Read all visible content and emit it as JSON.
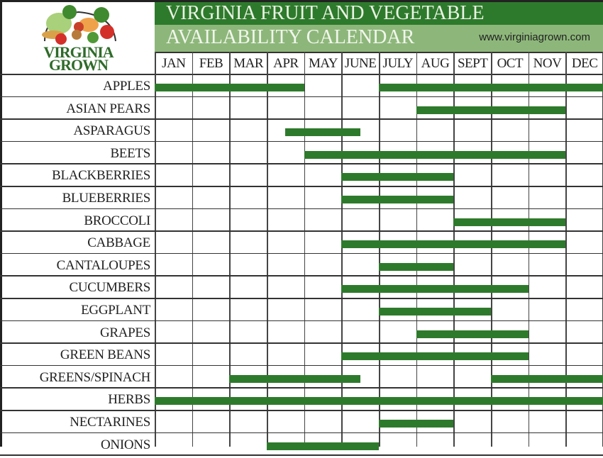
{
  "header": {
    "logo_line1": "VIRGINIA",
    "logo_line2": "GROWN",
    "title_line1": "VIRGINIA FRUIT AND VEGETABLE",
    "title_line2": "AVAILABILITY CALENDAR",
    "url": "www.virginiagrown.com"
  },
  "colors": {
    "bar": "#2e7a2c",
    "title_dark": "#2e7a2c",
    "title_light": "#8db77a"
  },
  "chart_data": {
    "type": "gantt",
    "title": "VIRGINIA FRUIT AND VEGETABLE AVAILABILITY CALENDAR",
    "subtitle": "www.virginiagrown.com",
    "categories": [
      "JAN",
      "FEB",
      "MAR",
      "APR",
      "MAY",
      "JUNE",
      "JULY",
      "AUG",
      "SEPT",
      "OCT",
      "NOV",
      "DEC"
    ],
    "x_unit": "month index (0 = start of JAN, 12 = end of DEC)",
    "grid": true,
    "rows": [
      {
        "name": "APPLES",
        "spans": [
          [
            0,
            4
          ],
          [
            6,
            12
          ]
        ]
      },
      {
        "name": "ASIAN PEARS",
        "spans": [
          [
            7,
            11
          ]
        ]
      },
      {
        "name": "ASPARAGUS",
        "spans": [
          [
            3.5,
            5.5
          ]
        ]
      },
      {
        "name": "BEETS",
        "spans": [
          [
            4,
            11
          ]
        ]
      },
      {
        "name": "BLACKBERRIES",
        "spans": [
          [
            5,
            8
          ]
        ]
      },
      {
        "name": "BLUEBERRIES",
        "spans": [
          [
            5,
            8
          ]
        ]
      },
      {
        "name": "BROCCOLI",
        "spans": [
          [
            8,
            11
          ]
        ]
      },
      {
        "name": "CABBAGE",
        "spans": [
          [
            5,
            11
          ]
        ]
      },
      {
        "name": "CANTALOUPES",
        "spans": [
          [
            6,
            8
          ]
        ]
      },
      {
        "name": "CUCUMBERS",
        "spans": [
          [
            5,
            10
          ]
        ]
      },
      {
        "name": "EGGPLANT",
        "spans": [
          [
            6,
            9
          ]
        ]
      },
      {
        "name": "GRAPES",
        "spans": [
          [
            7,
            10
          ]
        ]
      },
      {
        "name": "GREEN BEANS",
        "spans": [
          [
            5,
            10
          ]
        ]
      },
      {
        "name": "GREENS/SPINACH",
        "spans": [
          [
            2,
            5.5
          ],
          [
            9,
            12
          ]
        ]
      },
      {
        "name": "HERBS",
        "spans": [
          [
            0,
            12
          ]
        ]
      },
      {
        "name": "NECTARINES",
        "spans": [
          [
            6,
            8
          ]
        ]
      },
      {
        "name": "ONIONS",
        "spans": [
          [
            3,
            6
          ]
        ]
      }
    ]
  }
}
